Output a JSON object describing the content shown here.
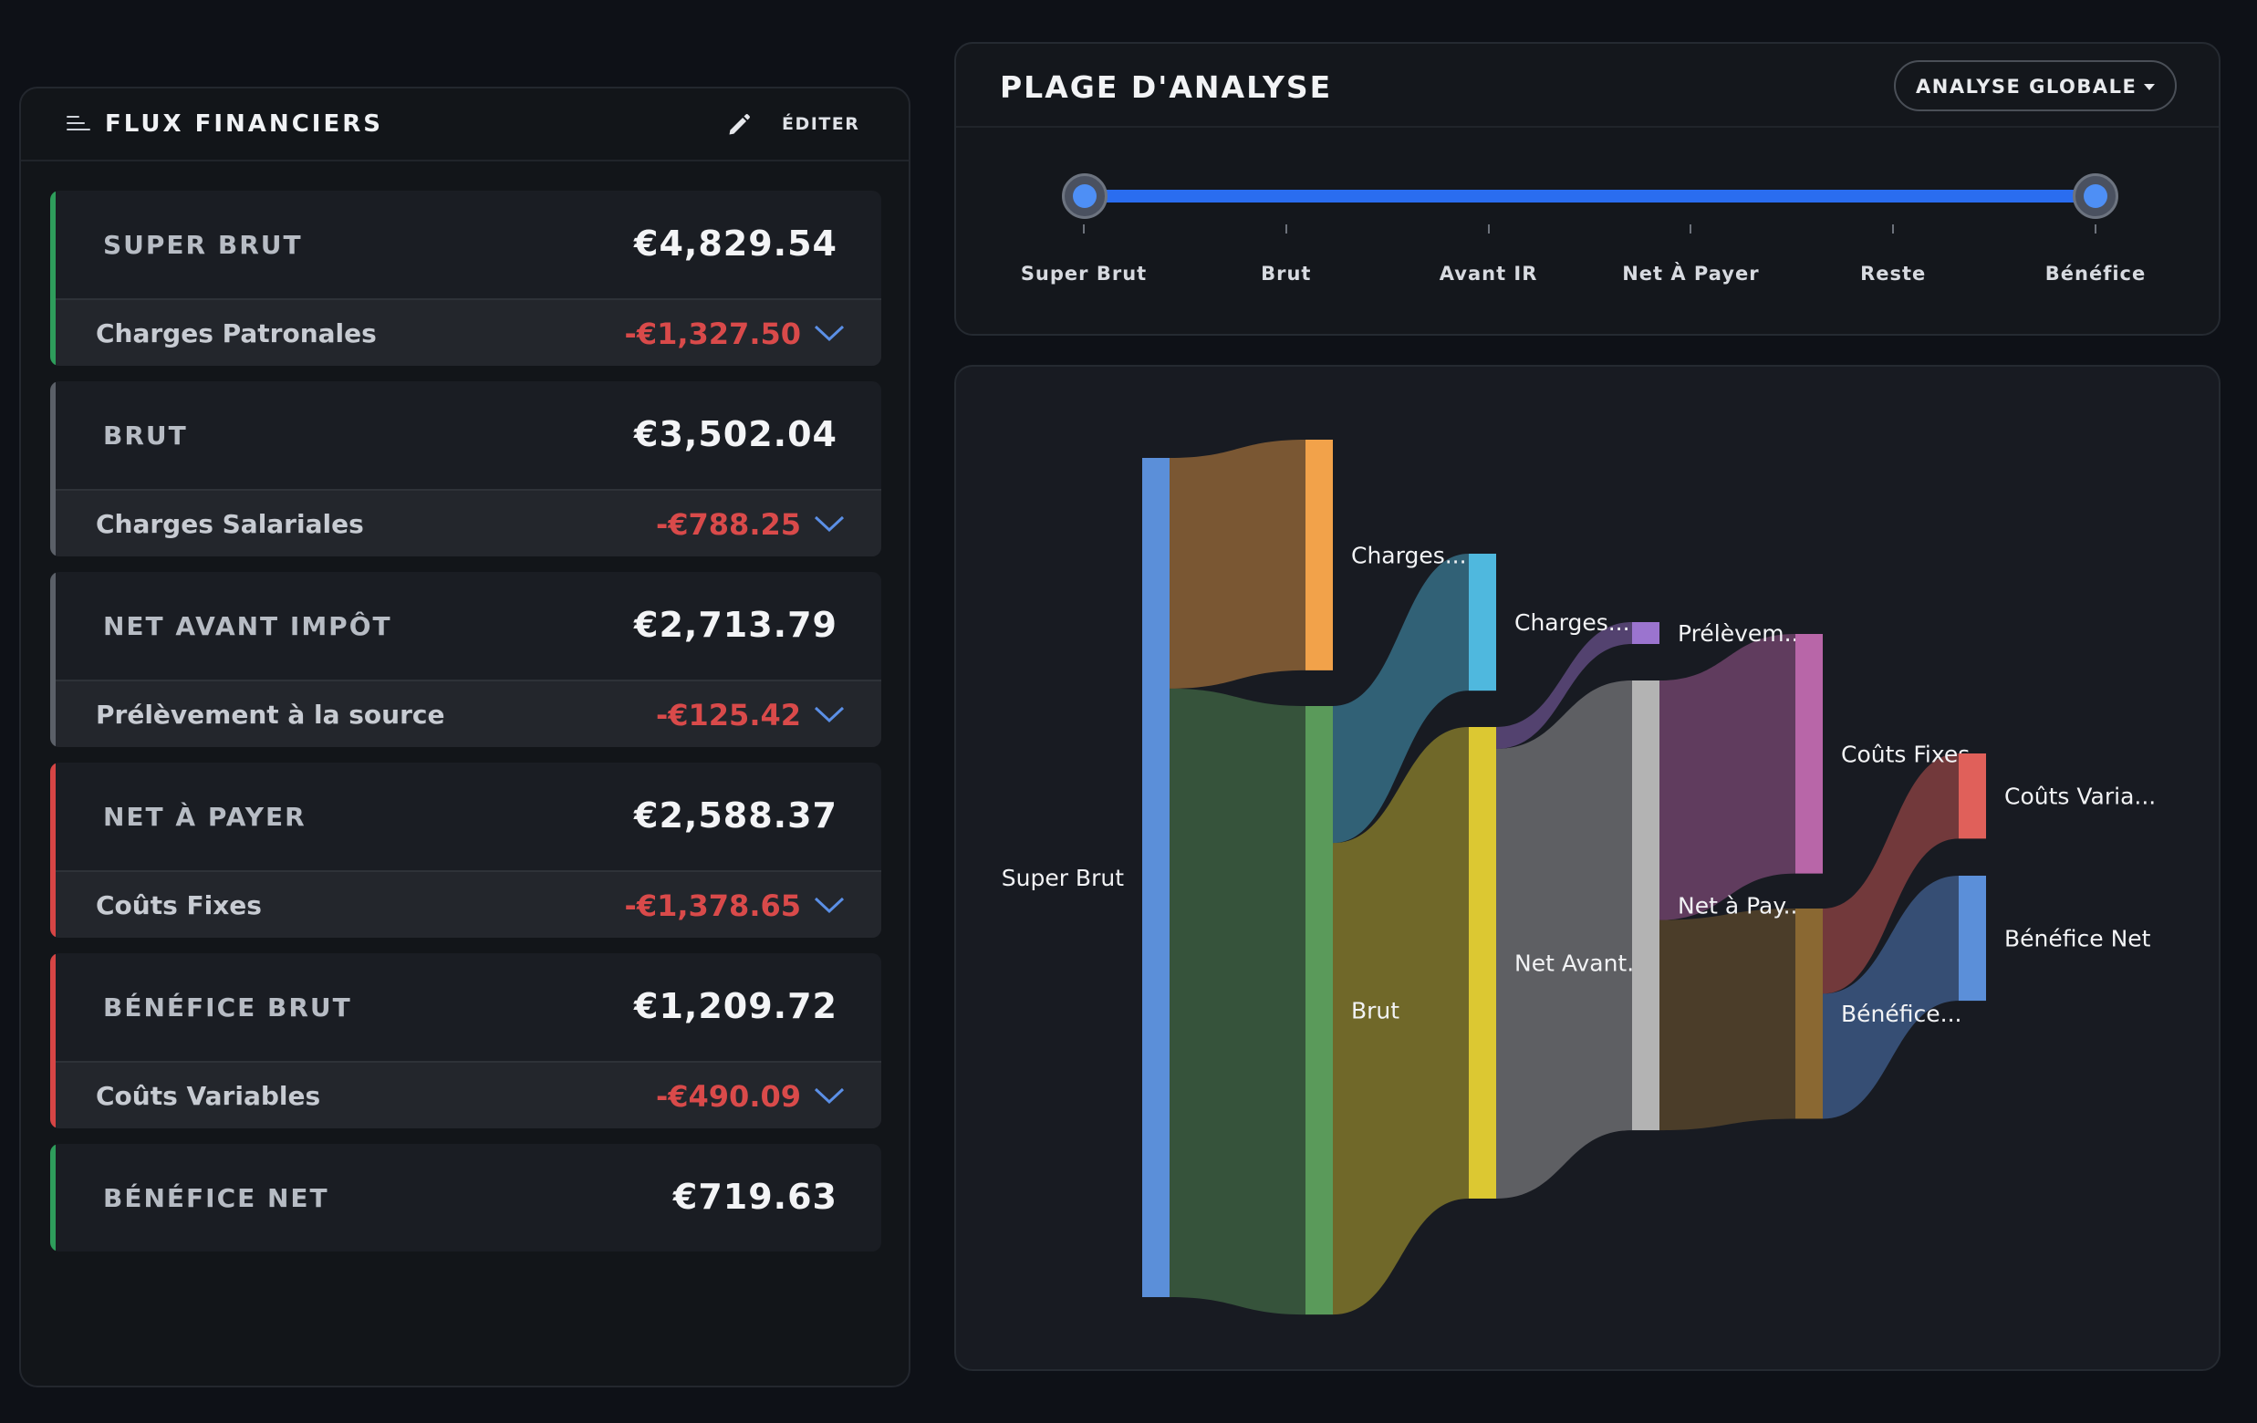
{
  "left_panel": {
    "title": "FLUX FINANCIERS",
    "edit_label": "ÉDITER",
    "cards": [
      {
        "label": "SUPER BRUT",
        "value": "€4,829.54",
        "accent": "#2e9d5b",
        "sub_label": "Charges Patronales",
        "sub_value": "-€1,327.50"
      },
      {
        "label": "BRUT",
        "value": "€3,502.04",
        "accent": "#5b6068",
        "sub_label": "Charges Salariales",
        "sub_value": "-€788.25"
      },
      {
        "label": "NET AVANT IMPÔT",
        "value": "€2,713.79",
        "accent": "#5b6068",
        "sub_label": "Prélèvement à la source",
        "sub_value": "-€125.42"
      },
      {
        "label": "NET À PAYER",
        "value": "€2,588.37",
        "accent": "#d64545",
        "sub_label": "Coûts Fixes",
        "sub_value": "-€1,378.65"
      },
      {
        "label": "BÉNÉFICE BRUT",
        "value": "€1,209.72",
        "accent": "#d64545",
        "sub_label": "Coûts Variables",
        "sub_value": "-€490.09"
      },
      {
        "label": "BÉNÉFICE NET",
        "value": "€719.63",
        "accent": "#2e9d5b"
      }
    ]
  },
  "range_panel": {
    "title": "PLAGE D'ANALYSE",
    "dropdown_label": "ANALYSE GLOBALE",
    "ticks": [
      "Super Brut",
      "Brut",
      "Avant IR",
      "Net À Payer",
      "Reste",
      "Bénéfice"
    ],
    "accent": "#2a6df0"
  },
  "sankey": {
    "nodes": [
      {
        "id": "super_brut",
        "label": "Super Brut",
        "color": "#5b8fd9"
      },
      {
        "id": "charges_pat",
        "label": "Charges...",
        "color": "#f2a24a"
      },
      {
        "id": "brut",
        "label": "Brut",
        "color": "#5a9a5a"
      },
      {
        "id": "charges_sal",
        "label": "Charges...",
        "color": "#4fb8de"
      },
      {
        "id": "net_avant",
        "label": "Net Avant...",
        "color": "#dcc832"
      },
      {
        "id": "prelevement",
        "label": "Prélèvem...",
        "color": "#9b74cf"
      },
      {
        "id": "net_payer",
        "label": "Net à Pay...",
        "color": "#b3b3b3"
      },
      {
        "id": "couts_fixes",
        "label": "Coûts Fixes",
        "color": "#b866a8"
      },
      {
        "id": "benefice",
        "label": "Bénéfice...",
        "color": "#8a6832"
      },
      {
        "id": "couts_var",
        "label": "Coûts Varia...",
        "color": "#e0605a"
      },
      {
        "id": "benefice_net",
        "label": "Bénéfice Net",
        "color": "#5b8fd9"
      }
    ],
    "links": [
      {
        "source": "super_brut",
        "target": "charges_pat",
        "value": 1327.5
      },
      {
        "source": "super_brut",
        "target": "brut",
        "value": 3502.04
      },
      {
        "source": "brut",
        "target": "charges_sal",
        "value": 788.25
      },
      {
        "source": "brut",
        "target": "net_avant",
        "value": 2713.79
      },
      {
        "source": "net_avant",
        "target": "prelevement",
        "value": 125.42
      },
      {
        "source": "net_avant",
        "target": "net_payer",
        "value": 2588.37
      },
      {
        "source": "net_payer",
        "target": "couts_fixes",
        "value": 1378.65
      },
      {
        "source": "net_payer",
        "target": "benefice",
        "value": 1209.72
      },
      {
        "source": "benefice",
        "target": "couts_var",
        "value": 490.09
      },
      {
        "source": "benefice",
        "target": "benefice_net",
        "value": 719.63
      }
    ]
  }
}
